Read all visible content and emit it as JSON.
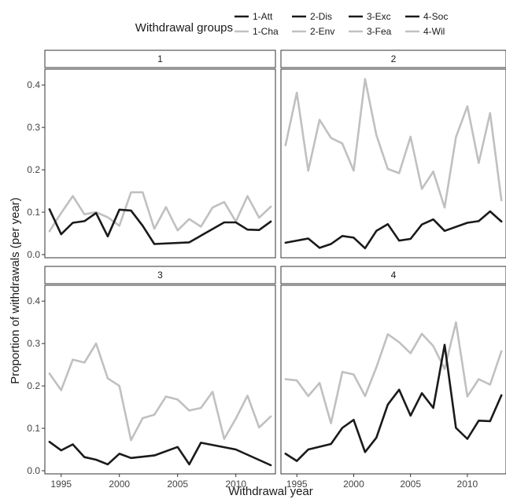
{
  "chart_data": {
    "type": "line",
    "xlabel": "Withdrawal year",
    "ylabel": "Proportion of withdrawals (per year)",
    "xlim": [
      1993.6,
      2013.4
    ],
    "ylim": [
      0,
      0.43
    ],
    "x_ticks": [
      1995,
      2000,
      2005,
      2010
    ],
    "y_ticks": [
      0.0,
      0.1,
      0.2,
      0.3,
      0.4
    ],
    "x_tick_labels": [
      "1995",
      "2000",
      "2005",
      "2010"
    ],
    "y_tick_labels": [
      "0.0",
      "0.1",
      "0.2",
      "0.3",
      "0.4"
    ],
    "grid": false,
    "legend": {
      "title": "Withdrawal groups",
      "placement": "top",
      "entries": [
        {
          "label": "1-Att",
          "color": "#1a1a1a"
        },
        {
          "label": "2-Dis",
          "color": "#1a1a1a"
        },
        {
          "label": "3-Exc",
          "color": "#1a1a1a"
        },
        {
          "label": "4-Soc",
          "color": "#1a1a1a"
        },
        {
          "label": "1-Cha",
          "color": "#c0c0c0"
        },
        {
          "label": "2-Env",
          "color": "#c0c0c0"
        },
        {
          "label": "3-Fea",
          "color": "#c0c0c0"
        },
        {
          "label": "4-Wil",
          "color": "#c0c0c0"
        }
      ]
    },
    "panels": [
      {
        "label": "1",
        "series": [
          {
            "name": "1-Att",
            "color": "#1a1a1a",
            "x": [
              1994,
              1995,
              1996,
              1997,
              1998,
              1999,
              2000,
              2001,
              2002,
              2003,
              2006,
              2009,
              2010,
              2011,
              2012,
              2013
            ],
            "y": [
              0.107,
              0.048,
              0.075,
              0.079,
              0.098,
              0.043,
              0.106,
              0.104,
              0.068,
              0.025,
              0.029,
              0.076,
              0.076,
              0.059,
              0.058,
              0.078
            ]
          },
          {
            "name": "1-Cha",
            "color": "#c0c0c0",
            "x": [
              1994,
              1995,
              1996,
              1997,
              1998,
              1999,
              2000,
              2001,
              2002,
              2003,
              2004,
              2005,
              2006,
              2007,
              2008,
              2009,
              2010,
              2011,
              2012,
              2013
            ],
            "y": [
              0.055,
              0.098,
              0.138,
              0.095,
              0.1,
              0.088,
              0.068,
              0.147,
              0.147,
              0.061,
              0.112,
              0.057,
              0.084,
              0.066,
              0.111,
              0.124,
              0.078,
              0.138,
              0.087,
              0.113
            ]
          }
        ]
      },
      {
        "label": "2",
        "series": [
          {
            "name": "2-Dis",
            "color": "#1a1a1a",
            "x": [
              1994,
              1996,
              1997,
              1998,
              1999,
              2000,
              2001,
              2002,
              2003,
              2004,
              2005,
              2006,
              2007,
              2008,
              2010,
              2011,
              2012,
              2013
            ],
            "y": [
              0.028,
              0.038,
              0.016,
              0.025,
              0.044,
              0.04,
              0.015,
              0.056,
              0.072,
              0.033,
              0.037,
              0.071,
              0.083,
              0.056,
              0.075,
              0.079,
              0.102,
              0.078
            ]
          },
          {
            "name": "2-Env",
            "color": "#c0c0c0",
            "x": [
              1994,
              1995,
              1996,
              1997,
              1998,
              1999,
              2000,
              2001,
              2002,
              2003,
              2004,
              2005,
              2006,
              2007,
              2008,
              2009,
              2010,
              2011,
              2012,
              2013
            ],
            "y": [
              0.258,
              0.382,
              0.198,
              0.318,
              0.275,
              0.262,
              0.198,
              0.414,
              0.282,
              0.202,
              0.192,
              0.278,
              0.155,
              0.196,
              0.111,
              0.277,
              0.35,
              0.216,
              0.334,
              0.128
            ]
          }
        ]
      },
      {
        "label": "3",
        "series": [
          {
            "name": "3-Exc",
            "color": "#1a1a1a",
            "x": [
              1994,
              1995,
              1996,
              1997,
              1998,
              1999,
              2000,
              2001,
              2003,
              2005,
              2006,
              2007,
              2010,
              2013
            ],
            "y": [
              0.068,
              0.048,
              0.062,
              0.032,
              0.026,
              0.015,
              0.04,
              0.03,
              0.036,
              0.056,
              0.015,
              0.066,
              0.05,
              0.013
            ]
          },
          {
            "name": "3-Fea",
            "color": "#c0c0c0",
            "x": [
              1994,
              1995,
              1996,
              1997,
              1998,
              1999,
              2000,
              2001,
              2002,
              2003,
              2004,
              2005,
              2006,
              2007,
              2008,
              2009,
              2010,
              2011,
              2012,
              2013
            ],
            "y": [
              0.229,
              0.19,
              0.262,
              0.255,
              0.3,
              0.218,
              0.2,
              0.072,
              0.124,
              0.132,
              0.175,
              0.168,
              0.142,
              0.148,
              0.186,
              0.075,
              0.123,
              0.177,
              0.102,
              0.128
            ]
          }
        ]
      },
      {
        "label": "4",
        "series": [
          {
            "name": "4-Soc",
            "color": "#1a1a1a",
            "x": [
              1994,
              1995,
              1996,
              1998,
              1999,
              2000,
              2001,
              2002,
              2003,
              2004,
              2005,
              2006,
              2007,
              2008,
              2009,
              2010,
              2011,
              2012,
              2013
            ],
            "y": [
              0.04,
              0.023,
              0.05,
              0.063,
              0.101,
              0.12,
              0.044,
              0.078,
              0.156,
              0.191,
              0.13,
              0.183,
              0.148,
              0.297,
              0.101,
              0.075,
              0.118,
              0.117,
              0.178
            ]
          },
          {
            "name": "4-Wil",
            "color": "#c0c0c0",
            "x": [
              1994,
              1995,
              1996,
              1997,
              1998,
              1999,
              2000,
              2001,
              2002,
              2003,
              2004,
              2005,
              2006,
              2007,
              2008,
              2009,
              2010,
              2011,
              2012,
              2013
            ],
            "y": [
              0.216,
              0.213,
              0.176,
              0.207,
              0.112,
              0.233,
              0.227,
              0.176,
              0.244,
              0.322,
              0.303,
              0.277,
              0.323,
              0.294,
              0.24,
              0.35,
              0.175,
              0.216,
              0.203,
              0.282
            ]
          }
        ]
      }
    ]
  }
}
